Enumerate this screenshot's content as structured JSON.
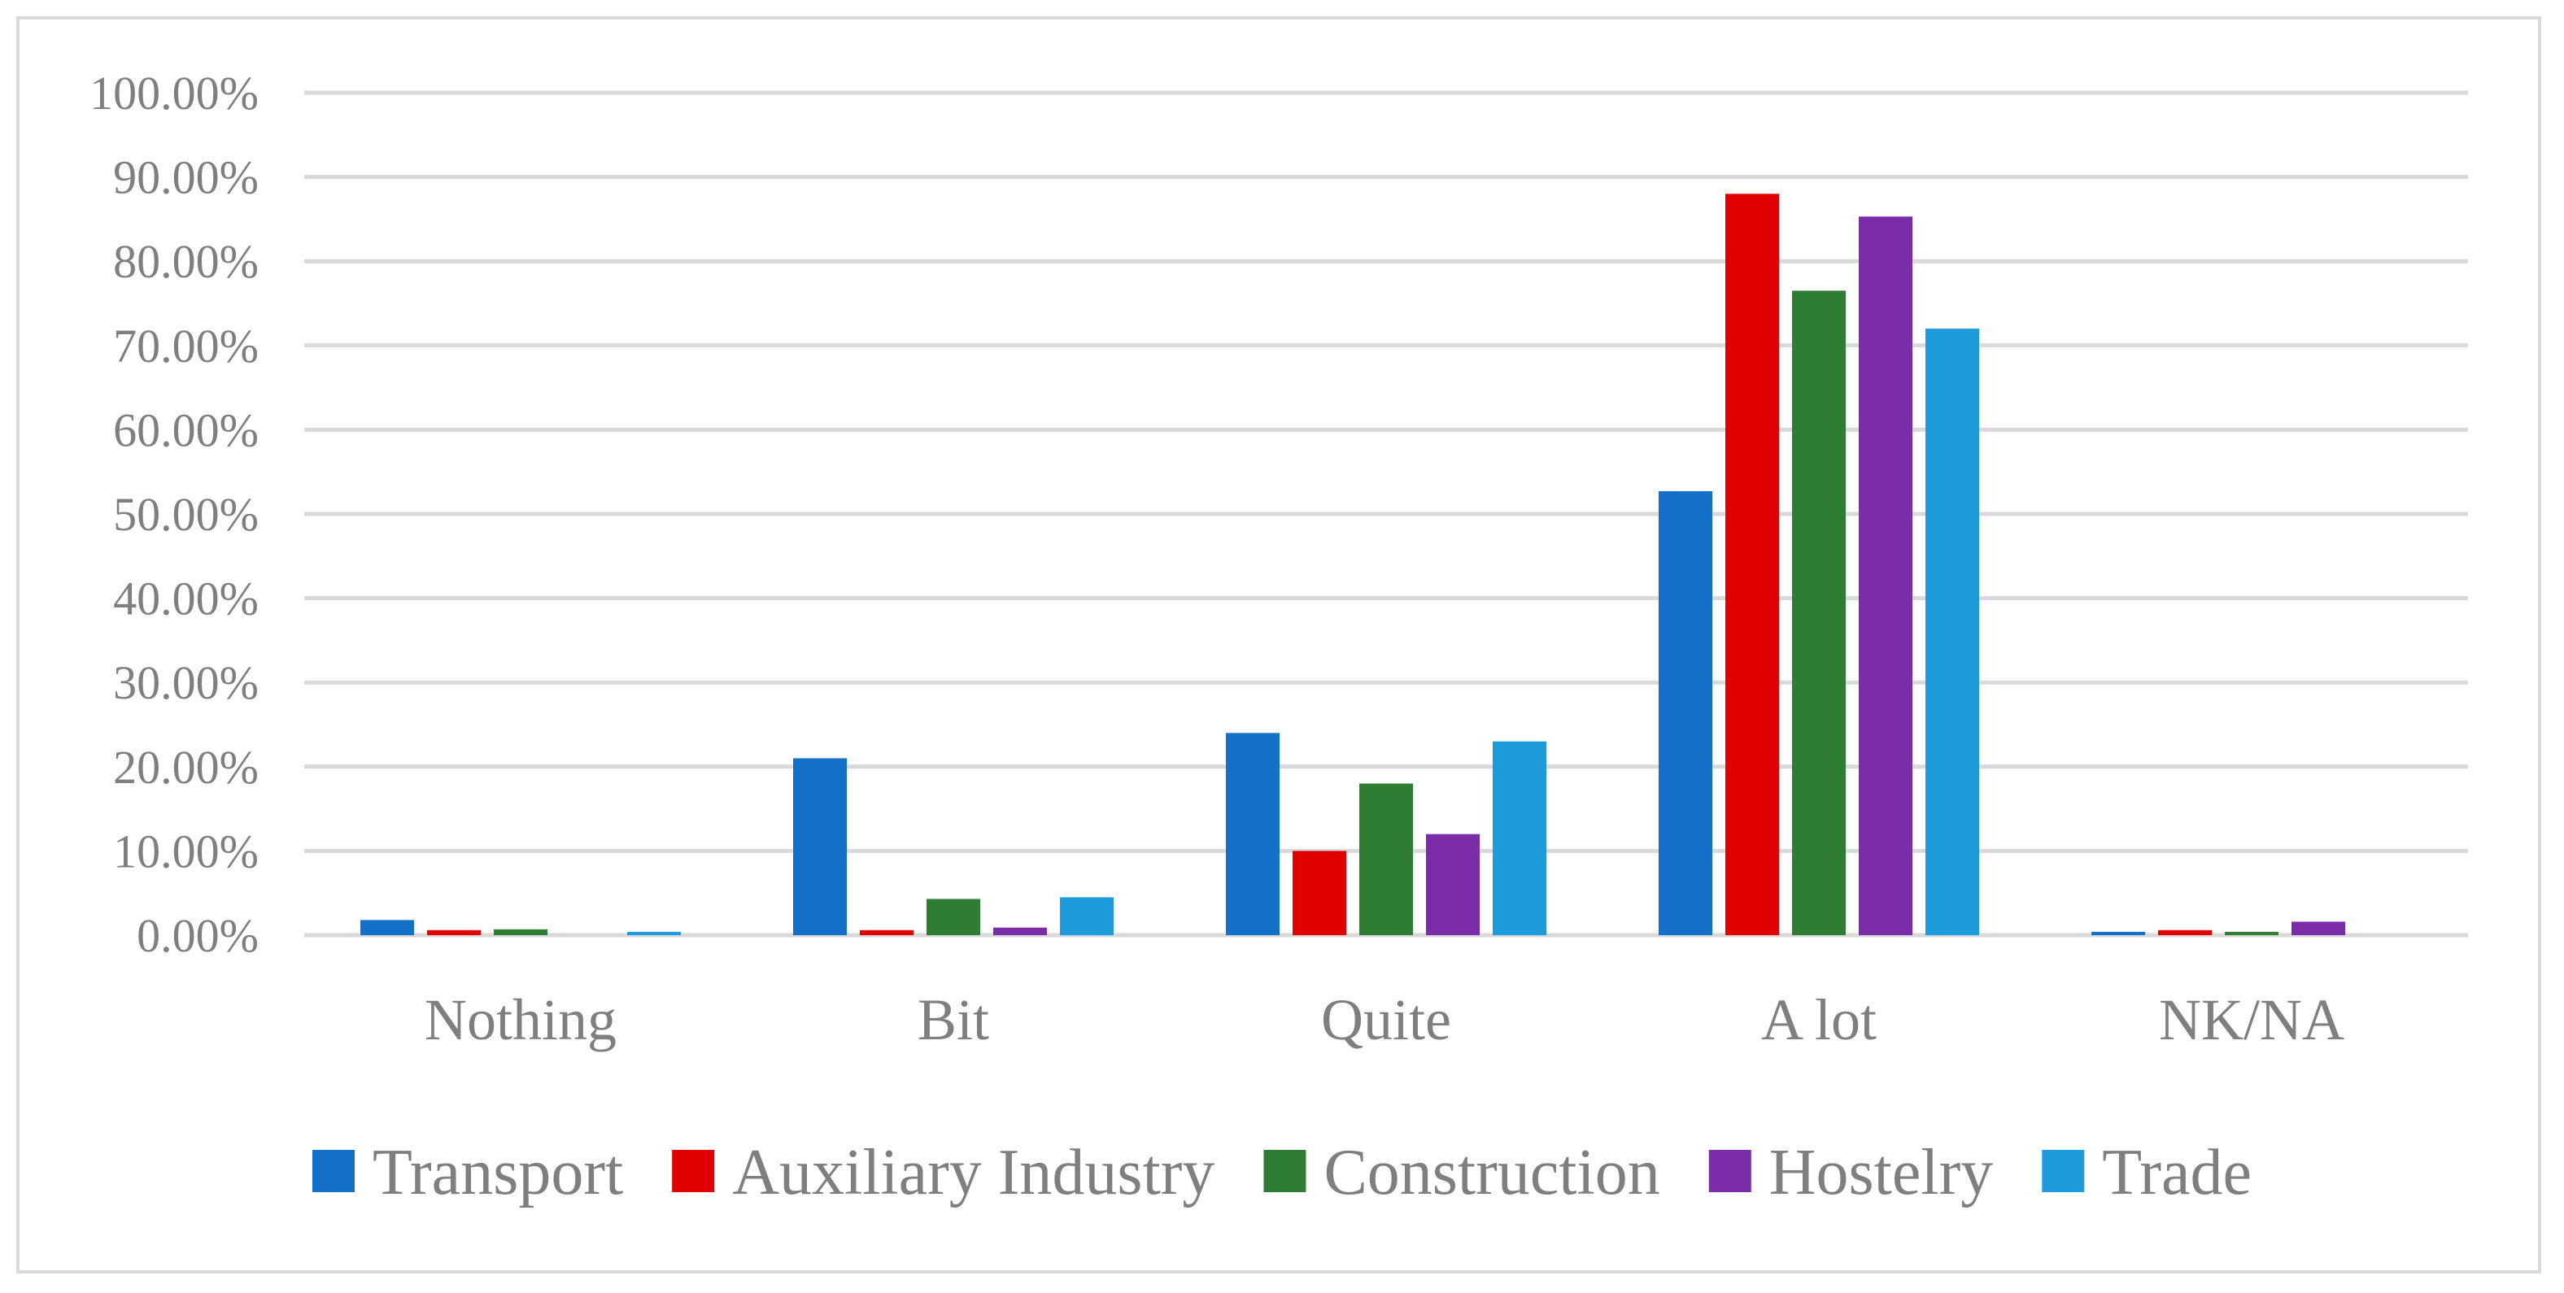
{
  "chart_data": {
    "type": "bar",
    "categories": [
      "Nothing",
      "Bit",
      "Quite",
      "A lot",
      "NK/NA"
    ],
    "series": [
      {
        "name": "Transport",
        "color": "#1570C8",
        "values": [
          1.8,
          21.0,
          24.0,
          52.7,
          0.4
        ]
      },
      {
        "name": "Auxiliary Industry",
        "color": "#E00000",
        "values": [
          0.6,
          0.6,
          10.0,
          88.0,
          0.6
        ]
      },
      {
        "name": "Construction",
        "color": "#2E7D32",
        "values": [
          0.7,
          4.3,
          18.0,
          76.5,
          0.4
        ]
      },
      {
        "name": "Hostelry",
        "color": "#7B2CA8",
        "values": [
          0.0,
          0.9,
          12.0,
          85.3,
          1.6
        ]
      },
      {
        "name": "Trade",
        "color": "#1E9BDB",
        "values": [
          0.4,
          4.5,
          23.0,
          72.0,
          0.0
        ]
      }
    ],
    "yticks": [
      "0.00%",
      "10.00%",
      "20.00%",
      "30.00%",
      "40.00%",
      "50.00%",
      "60.00%",
      "70.00%",
      "80.00%",
      "90.00%",
      "100.00%"
    ],
    "ylim": [
      0,
      100
    ],
    "grid": true,
    "legend_position": "bottom"
  }
}
